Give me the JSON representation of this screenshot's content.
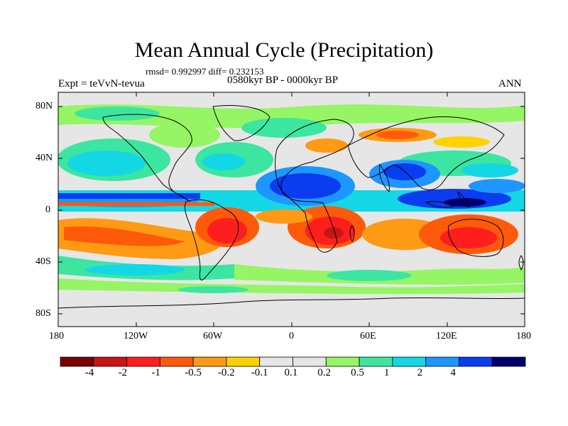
{
  "title": "Mean Annual Cycle (Precipitation)",
  "stats": "rmsd= 0.992997 diff= 0.232153",
  "period": "0580kyr BP - 0000kyr BP",
  "experiment": "Expt = teVvN-tevua",
  "season": "ANN",
  "lat_ticks": [
    "80N",
    "40N",
    "0",
    "40S",
    "80S"
  ],
  "lon_ticks": [
    "180",
    "120W",
    "60W",
    "0",
    "60E",
    "120E",
    "180"
  ],
  "colorbar": {
    "colors": [
      "#7a0000",
      "#c81414",
      "#ff1e1e",
      "#ff5a0a",
      "#ff9a14",
      "#ffd200",
      "#e6e6e6",
      "#e6e6e6",
      "#96f564",
      "#3ce6a0",
      "#14d7e6",
      "#1e96ff",
      "#0a3cf0",
      "#00006e"
    ],
    "labels": [
      "-4",
      "-2",
      "-1",
      "-0.5",
      "-0.2",
      "-0.1",
      "0.1",
      "0.2",
      "0.5",
      "1",
      "2",
      "4"
    ]
  }
}
